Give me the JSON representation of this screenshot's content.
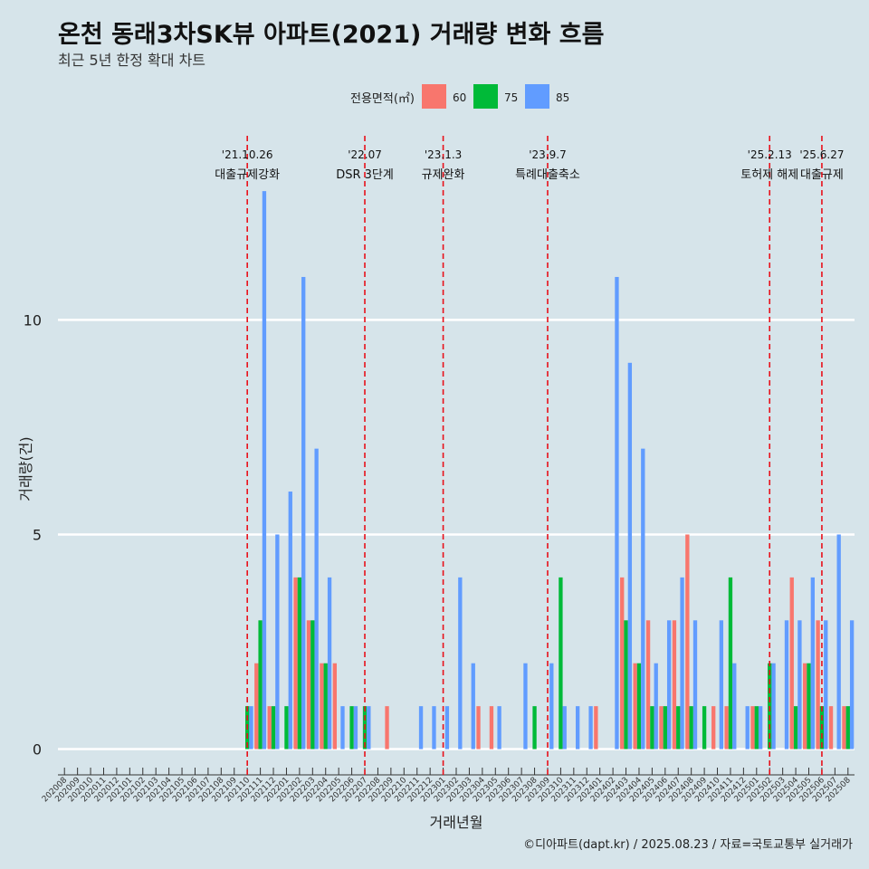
{
  "title": "온천 동래3차SK뷰 아파트(2021) 거래량 변화 흐름",
  "subtitle": "최근 5년 한정 확대 차트",
  "caption": "©디아파트(dapt.kr) / 2025.08.23 / 자료=국토교통부 실거래가",
  "chart_data": {
    "type": "bar",
    "title": "온천 동래3차SK뷰 아파트(2021) 거래량 변화 흐름",
    "subtitle": "최근 5년 한정 확대 차트",
    "xlabel": "거래년월",
    "ylabel": "거래량(건)",
    "ylim": [
      -0.6,
      14.5
    ],
    "yticks": [
      0,
      5,
      10
    ],
    "grid": "horizontal",
    "legend": {
      "title": "전용면적(㎡)",
      "position": "top"
    },
    "colors": {
      "60": "#f8766d",
      "75": "#00ba38",
      "85": "#619cff"
    },
    "categories": [
      "202008",
      "202009",
      "202010",
      "202011",
      "202012",
      "202101",
      "202102",
      "202103",
      "202104",
      "202105",
      "202106",
      "202107",
      "202108",
      "202109",
      "202110",
      "202111",
      "202112",
      "202201",
      "202202",
      "202203",
      "202204",
      "202205",
      "202206",
      "202207",
      "202208",
      "202209",
      "202210",
      "202211",
      "202212",
      "202301",
      "202302",
      "202303",
      "202304",
      "202305",
      "202306",
      "202307",
      "202308",
      "202309",
      "202310",
      "202311",
      "202312",
      "202401",
      "202402",
      "202403",
      "202404",
      "202405",
      "202406",
      "202407",
      "202408",
      "202409",
      "202410",
      "202411",
      "202412",
      "202501",
      "202502",
      "202503",
      "202504",
      "202505",
      "202506",
      "202507",
      "202508"
    ],
    "series": [
      {
        "name": "60",
        "values": [
          0,
          0,
          0,
          0,
          0,
          0,
          0,
          0,
          0,
          0,
          0,
          0,
          0,
          0,
          0,
          2,
          1,
          0,
          4,
          3,
          2,
          2,
          0,
          0,
          0,
          1,
          0,
          0,
          0,
          0,
          0,
          0,
          1,
          1,
          0,
          0,
          0,
          0,
          0,
          0,
          0,
          1,
          0,
          4,
          2,
          3,
          1,
          3,
          5,
          0,
          1,
          1,
          0,
          1,
          0,
          0,
          4,
          2,
          3,
          1,
          1
        ]
      },
      {
        "name": "75",
        "values": [
          0,
          0,
          0,
          0,
          0,
          0,
          0,
          0,
          0,
          0,
          0,
          0,
          0,
          0,
          1,
          3,
          1,
          1,
          4,
          3,
          2,
          0,
          1,
          1,
          0,
          0,
          0,
          0,
          0,
          0,
          0,
          0,
          0,
          0,
          0,
          0,
          1,
          0,
          4,
          0,
          0,
          0,
          0,
          3,
          2,
          1,
          1,
          1,
          1,
          1,
          0,
          4,
          0,
          1,
          2,
          0,
          1,
          2,
          1,
          0,
          1
        ]
      },
      {
        "name": "85",
        "values": [
          0,
          0,
          0,
          0,
          0,
          0,
          0,
          0,
          0,
          0,
          0,
          0,
          0,
          0,
          1,
          13,
          5,
          6,
          11,
          7,
          4,
          1,
          1,
          1,
          0,
          0,
          0,
          1,
          1,
          1,
          4,
          2,
          0,
          1,
          0,
          2,
          0,
          2,
          1,
          1,
          1,
          0,
          11,
          9,
          7,
          2,
          3,
          4,
          3,
          0,
          3,
          2,
          1,
          1,
          2,
          3,
          3,
          4,
          3,
          5,
          3
        ]
      }
    ],
    "events": [
      {
        "month": "202110",
        "date": "'21.10.26",
        "label": "대출규제강화"
      },
      {
        "month": "202207",
        "date": "'22.07",
        "label": "DSR 3단계"
      },
      {
        "month": "202301",
        "date": "'23.1.3",
        "label": "규제완화"
      },
      {
        "month": "202309",
        "date": "'23.9.7",
        "label": "특례대출축소"
      },
      {
        "month": "202502",
        "date": "'25.2.13",
        "label": "토허제 해제"
      },
      {
        "month": "202506",
        "date": "'25.6.27",
        "label": "대출규제"
      }
    ]
  }
}
